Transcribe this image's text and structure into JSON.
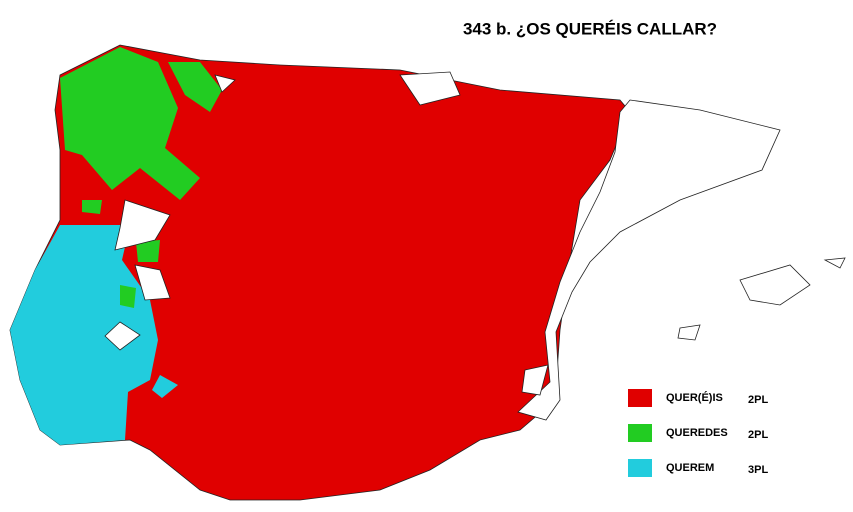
{
  "title": "343 b. ¿OS QUERÉIS CALLAR?",
  "legend": [
    {
      "label": "QUER(É)IS",
      "person": "2PL",
      "color": "#e00000"
    },
    {
      "label": "QUEREDES",
      "person": "2PL",
      "color": "#22cc22"
    },
    {
      "label": "QUEREM",
      "person": "3PL",
      "color": "#22ccdd"
    }
  ]
}
